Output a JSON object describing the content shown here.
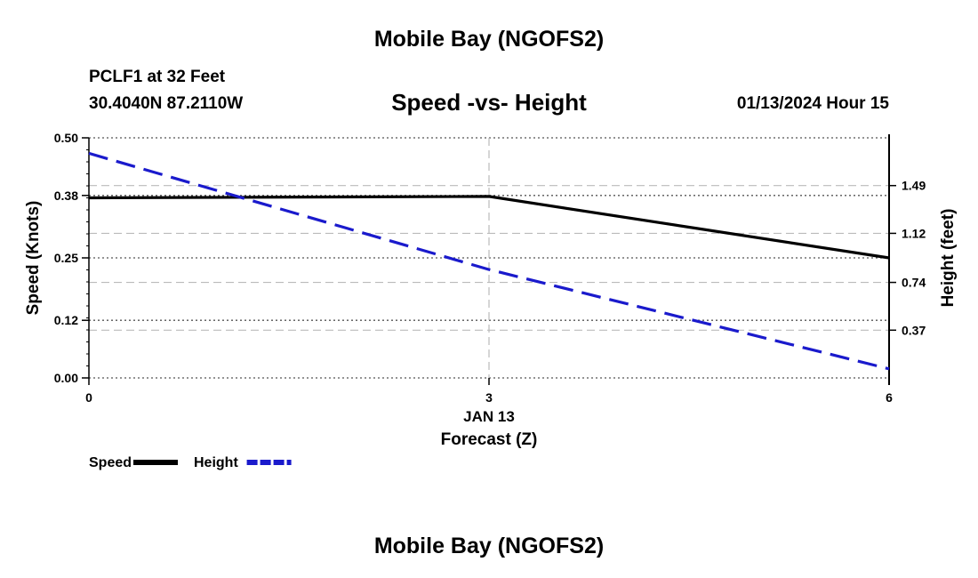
{
  "header": {
    "title": "Mobile Bay (NGOFS2)",
    "station": "PCLF1 at 32 Feet",
    "coords": "30.4040N  87.2110W",
    "datetime": "01/13/2024 Hour 15",
    "footer_title": "Mobile Bay (NGOFS2)"
  },
  "chart_data": {
    "type": "line",
    "title": "Speed -vs- Height",
    "xlabel": "Forecast (Z)",
    "x_date_label": "JAN 13",
    "x_ticks": [
      "0",
      "3",
      "6"
    ],
    "xlim": [
      0,
      6
    ],
    "ylabel_left": "Speed (Knots)",
    "ylim_left": [
      0,
      0.5
    ],
    "left_ticks": [
      "0.00",
      "0.12",
      "0.25",
      "0.38",
      "0.50"
    ],
    "ylabel_right": "Height (feet)",
    "ylim_right": [
      0,
      1.86
    ],
    "right_ticks": [
      "0.37",
      "0.74",
      "1.12",
      "1.49"
    ],
    "grid": true,
    "legend_position": "bottom-left",
    "series": [
      {
        "name": "Speed",
        "axis": "left",
        "color": "#000000",
        "style": "solid",
        "x": [
          0,
          3,
          6
        ],
        "values": [
          0.375,
          0.378,
          0.25
        ]
      },
      {
        "name": "Height",
        "axis": "right",
        "color": "#1a1acc",
        "style": "dashed",
        "x": [
          0,
          3,
          6
        ],
        "values": [
          1.74,
          0.84,
          0.07
        ]
      }
    ]
  }
}
